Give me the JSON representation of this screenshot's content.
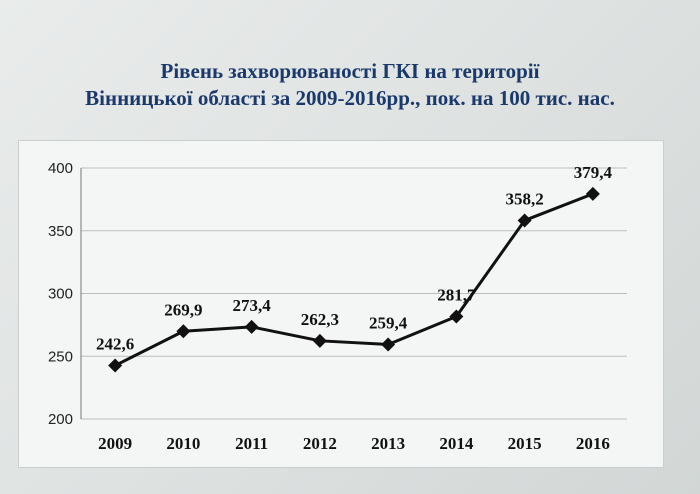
{
  "title_line1": "Рівень захворюваності ГКІ на території",
  "title_line2": "Вінницької області за 2009-2016рр., пок. на 100 тис. нас.",
  "chart_data": {
    "type": "line",
    "title": "Рівень захворюваності ГКІ на території Вінницької області за 2009-2016рр., пок. на 100 тис. нас.",
    "xlabel": "",
    "ylabel": "",
    "categories": [
      "2009",
      "2010",
      "2011",
      "2012",
      "2013",
      "2014",
      "2015",
      "2016"
    ],
    "values": [
      242.6,
      269.9,
      273.4,
      262.3,
      259.4,
      281.7,
      358.2,
      379.4
    ],
    "data_labels": [
      "242,6",
      "269,9",
      "273,4",
      "262,3",
      "259,4",
      "281,7",
      "358,2",
      "379,4"
    ],
    "ylim": [
      200,
      400
    ],
    "yticks": [
      200,
      250,
      300,
      350,
      400
    ],
    "grid": true,
    "legend": "none",
    "marker": "diamond",
    "line_color": "#111111",
    "grid_color": "#b9bfbe"
  }
}
